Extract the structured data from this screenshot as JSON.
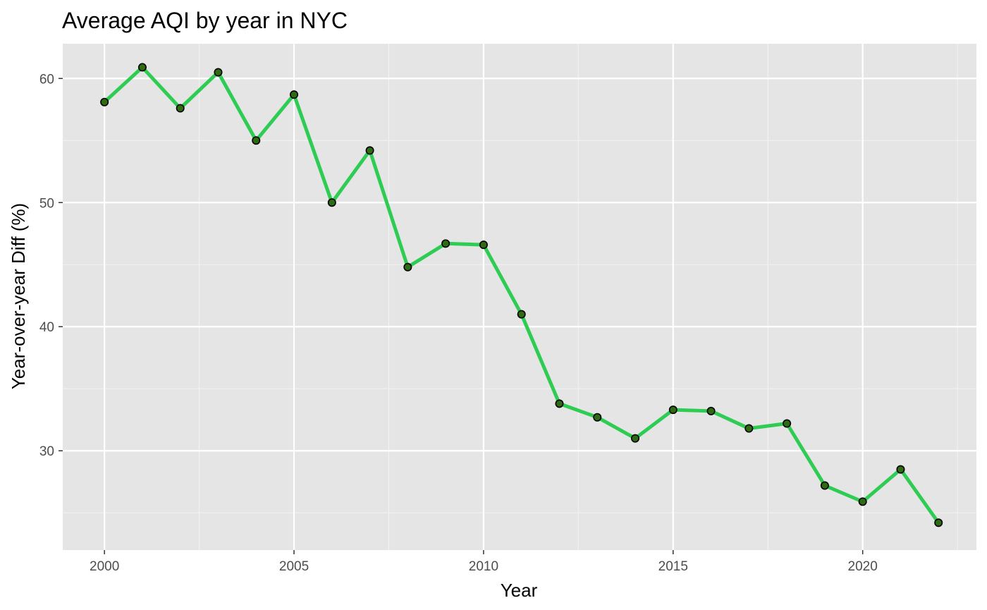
{
  "chart_data": {
    "type": "line",
    "title": "Average AQI by year in NYC",
    "xlabel": "Year",
    "ylabel": "Year-over-year Diff (%)",
    "xlim": [
      1998.9,
      2023.0
    ],
    "ylim": [
      22.0,
      62.8
    ],
    "x_ticks": [
      2000,
      2005,
      2010,
      2015,
      2020
    ],
    "x_tick_labels": [
      "2000",
      "2005",
      "2010",
      "2015",
      "2020"
    ],
    "y_ticks": [
      30,
      40,
      50,
      60
    ],
    "y_tick_labels": [
      "30",
      "40",
      "50",
      "60"
    ],
    "grid": true,
    "legend": "none",
    "series": [
      {
        "x": [
          2000,
          2001,
          2002,
          2003,
          2004,
          2005,
          2006,
          2007,
          2008,
          2009,
          2010,
          2011,
          2012,
          2013,
          2014,
          2015,
          2016,
          2017,
          2018,
          2019,
          2020,
          2021,
          2022
        ],
        "values": [
          58.1,
          60.9,
          57.6,
          60.5,
          55.0,
          58.7,
          50.0,
          54.2,
          44.8,
          46.7,
          46.6,
          41.0,
          33.8,
          32.7,
          31.0,
          33.3,
          33.2,
          31.8,
          32.2,
          27.2,
          25.9,
          28.5,
          24.2
        ],
        "line_color": "#2ecc52",
        "point_fill": "#2e6b12",
        "point_stroke": "#000000"
      }
    ]
  },
  "colors": {
    "panel_background": "#e5e5e5",
    "grid_major": "#ffffff",
    "grid_minor": "#f2f2f2"
  }
}
